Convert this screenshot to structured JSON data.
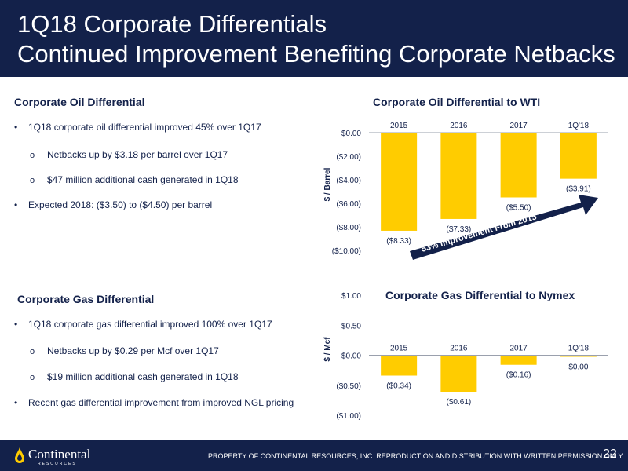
{
  "header": {
    "title_line1": "1Q18 Corporate Differentials",
    "title_line2": "Continued Improvement Benefiting Corporate Netbacks"
  },
  "oil": {
    "section_title": "Corporate Oil Differential",
    "bullet1": "1Q18 corporate oil differential improved 45% over 1Q17",
    "sub1": "Netbacks up by $3.18 per barrel over 1Q17",
    "sub2": "$47 million additional cash generated in 1Q18",
    "bullet2": "Expected 2018: ($3.50) to ($4.50) per barrel"
  },
  "gas": {
    "section_title": "Corporate Gas Differential",
    "bullet1": "1Q18 corporate gas differential improved 100% over 1Q17",
    "sub1": "Netbacks up by $0.29 per Mcf over 1Q17",
    "sub2": "$19 million additional cash generated in 1Q18",
    "bullet2": "Recent gas differential improvement from improved NGL pricing"
  },
  "bullet_marker": "•",
  "sub_marker": "o",
  "chart_data": [
    {
      "type": "bar",
      "title": "Corporate Oil Differential to WTI",
      "ylabel": "$ / Barrel",
      "categories": [
        "2015",
        "2016",
        "2017",
        "1Q'18"
      ],
      "values": [
        -8.33,
        -7.33,
        -5.5,
        -3.91
      ],
      "value_labels": [
        "($8.33)",
        "($7.33)",
        "($5.50)",
        "($3.91)"
      ],
      "ylim": [
        -10,
        0
      ],
      "yticks": [
        0,
        -2,
        -4,
        -6,
        -8,
        -10
      ],
      "ytick_labels": [
        "$0.00",
        "($2.00)",
        "($4.00)",
        "($6.00)",
        "($8.00)",
        "($10.00)"
      ],
      "annotation": "53% Improvement From 2015",
      "bar_color": "#ffcc00",
      "annotation_color": "#13214a"
    },
    {
      "type": "bar",
      "title": "Corporate Gas Differential to Nymex",
      "ylabel": "$ / Mcf",
      "categories": [
        "2015",
        "2016",
        "2017",
        "1Q'18"
      ],
      "values": [
        -0.34,
        -0.61,
        -0.16,
        0.0
      ],
      "value_labels": [
        "($0.34)",
        "($0.61)",
        "($0.16)",
        "$0.00"
      ],
      "ylim": [
        -1,
        1
      ],
      "yticks": [
        1,
        0.5,
        0,
        -0.5,
        -1
      ],
      "ytick_labels": [
        "$1.00",
        "$0.50",
        "$0.00",
        "($0.50)",
        "($1.00)"
      ],
      "bar_color": "#ffcc00"
    }
  ],
  "footer": {
    "notice": "PROPERTY OF CONTINENTAL RESOURCES, INC. REPRODUCTION AND DISTRIBUTION WITH WRITTEN PERMISSION ONLY",
    "page_number": "22",
    "logo_text": "Continental",
    "logo_subtext": "RESOURCES",
    "logo_icon": "oil-drop-icon"
  },
  "colors": {
    "navy": "#13214a",
    "gold": "#ffcc00",
    "text": "#13214a"
  }
}
